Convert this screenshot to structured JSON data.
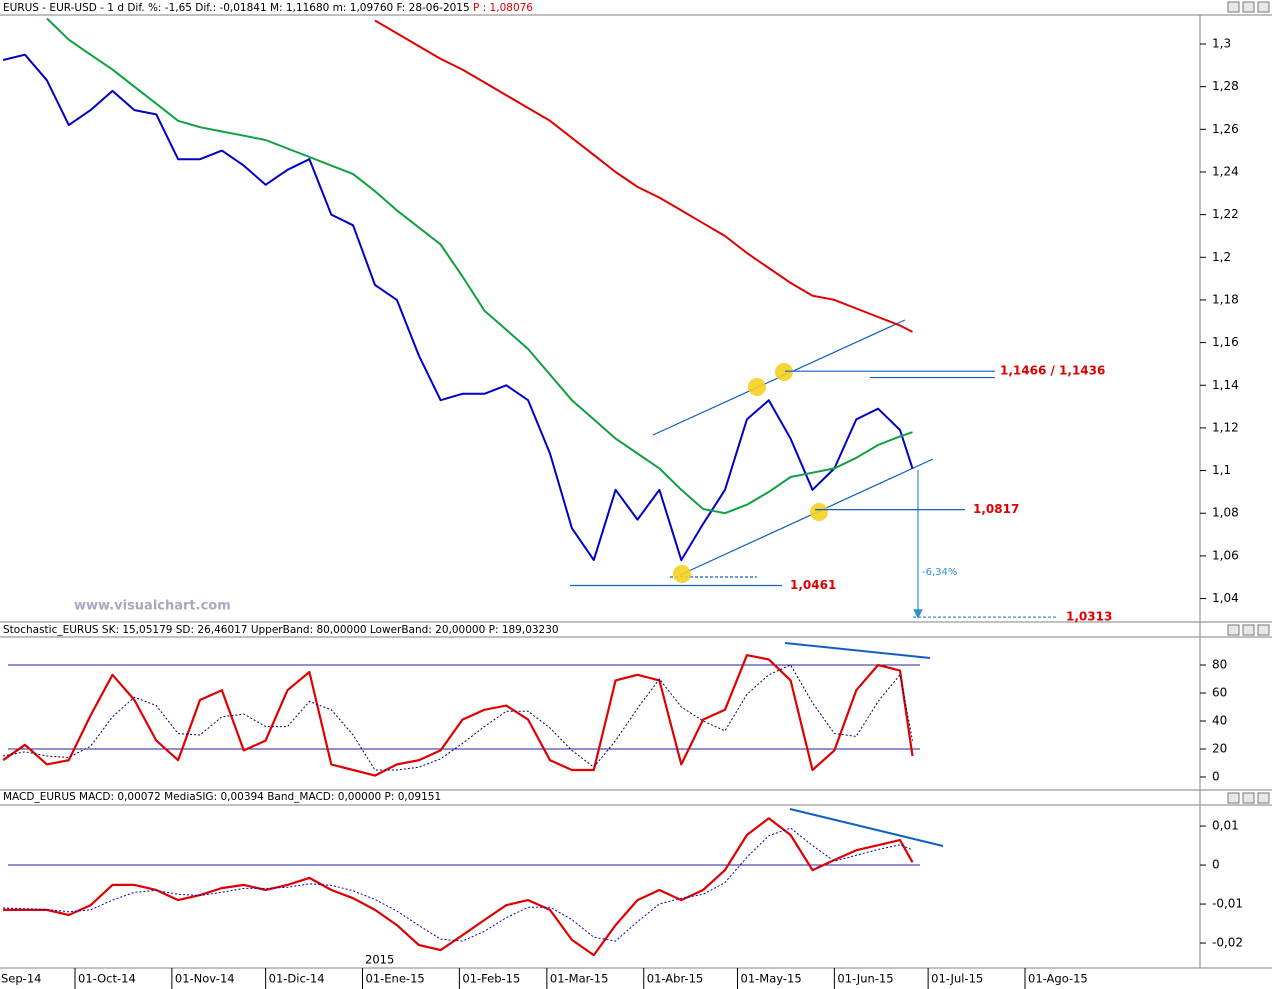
{
  "chart_data": [
    {
      "type": "line",
      "header": "EURUS - EUR-USD -  1 d Dif. %: -1,65 Dif.: -0,01841 M: 1,11680 m: 1,09760 F: 28-06-2015",
      "header_last": "P : 1,08076",
      "watermark": "www.visualchart.com",
      "change_label": "-6,34%",
      "x": [
        "2014-09-08",
        "2014-09-15",
        "2014-09-22",
        "2014-09-29",
        "2014-10-06",
        "2014-10-13",
        "2014-10-20",
        "2014-10-27",
        "2014-11-03",
        "2014-11-10",
        "2014-11-17",
        "2014-11-24",
        "2014-12-01",
        "2014-12-08",
        "2014-12-15",
        "2014-12-22",
        "2014-12-29",
        "2015-01-05",
        "2015-01-12",
        "2015-01-19",
        "2015-01-26",
        "2015-02-02",
        "2015-02-09",
        "2015-02-16",
        "2015-02-23",
        "2015-03-02",
        "2015-03-09",
        "2015-03-16",
        "2015-03-23",
        "2015-03-30",
        "2015-04-06",
        "2015-04-13",
        "2015-04-20",
        "2015-04-27",
        "2015-05-04",
        "2015-05-11",
        "2015-05-18",
        "2015-05-25",
        "2015-06-01",
        "2015-06-08",
        "2015-06-15",
        "2015-06-22",
        "2015-06-26"
      ],
      "series": [
        {
          "color": "#0000c8",
          "width": 2,
          "values": [
            1.2925,
            1.295,
            1.283,
            1.262,
            1.269,
            1.278,
            1.269,
            1.267,
            1.246,
            1.246,
            1.25,
            1.243,
            1.234,
            1.241,
            1.246,
            1.22,
            1.215,
            1.187,
            1.18,
            1.154,
            1.133,
            1.136,
            1.136,
            1.14,
            1.133,
            1.108,
            1.073,
            1.058,
            1.091,
            1.077,
            1.091,
            1.058,
            1.075,
            1.091,
            1.124,
            1.133,
            1.115,
            1.091,
            1.101,
            1.124,
            1.129,
            1.119,
            1.101
          ]
        },
        {
          "color": "#10a040",
          "width": 2,
          "values": [
            null,
            null,
            1.312,
            1.302,
            1.295,
            1.288,
            1.28,
            1.272,
            1.264,
            1.261,
            1.259,
            1.257,
            1.255,
            1.251,
            1.247,
            1.243,
            1.239,
            1.231,
            1.222,
            1.214,
            1.206,
            1.191,
            1.175,
            1.166,
            1.157,
            1.145,
            1.133,
            1.124,
            1.115,
            1.108,
            1.101,
            1.091,
            1.082,
            1.08,
            1.084,
            1.09,
            1.097,
            1.099,
            1.101,
            1.106,
            1.112,
            1.116,
            1.118
          ]
        },
        {
          "color": "#e00000",
          "width": 2,
          "values": [
            null,
            null,
            null,
            null,
            null,
            null,
            null,
            null,
            null,
            null,
            null,
            null,
            null,
            null,
            null,
            null,
            null,
            1.311,
            1.305,
            1.299,
            1.293,
            1.288,
            1.282,
            1.276,
            1.27,
            1.264,
            1.256,
            1.248,
            1.24,
            1.233,
            1.228,
            1.222,
            1.216,
            1.21,
            1.202,
            1.195,
            1.188,
            1.182,
            1.18,
            1.176,
            1.172,
            1.168,
            1.165
          ]
        }
      ],
      "levels": [
        {
          "label": "1,1466 / 1,1436",
          "values": [
            1.1466,
            1.1436
          ]
        },
        {
          "label": "1,0817",
          "values": [
            1.0817
          ]
        },
        {
          "label": "1,0461",
          "values": [
            1.0461
          ]
        },
        {
          "label": "1,0313",
          "values": [
            1.0313
          ]
        }
      ],
      "xlim": [
        "2014-09-07",
        "2015-09-26"
      ],
      "ylim": [
        1.029,
        1.3136
      ],
      "yticks": [
        {
          "value": 1.04,
          "label": "1,04"
        },
        {
          "value": 1.06,
          "label": "1,06"
        },
        {
          "value": 1.08,
          "label": "1,08"
        },
        {
          "value": 1.1,
          "label": "1,1"
        },
        {
          "value": 1.12,
          "label": "1,12"
        },
        {
          "value": 1.14,
          "label": "1,14"
        },
        {
          "value": 1.16,
          "label": "1,16"
        },
        {
          "value": 1.18,
          "label": "1,18"
        },
        {
          "value": 1.2,
          "label": "1,2"
        },
        {
          "value": 1.22,
          "label": "1,22"
        },
        {
          "value": 1.24,
          "label": "1,24"
        },
        {
          "value": 1.26,
          "label": "1,26"
        },
        {
          "value": 1.28,
          "label": "1,28"
        },
        {
          "value": 1.3,
          "label": "1,3"
        }
      ]
    },
    {
      "type": "line",
      "header": "Stochastic_EURUS SK: 15,05179 SD: 26,46017 UpperBand: 80,00000 LowerBand: 20,00000 P: 189,03230",
      "x": [
        "2014-09-08",
        "2014-09-15",
        "2014-09-22",
        "2014-09-29",
        "2014-10-06",
        "2014-10-13",
        "2014-10-20",
        "2014-10-27",
        "2014-11-03",
        "2014-11-10",
        "2014-11-17",
        "2014-11-24",
        "2014-12-01",
        "2014-12-08",
        "2014-12-15",
        "2014-12-22",
        "2014-12-29",
        "2015-01-05",
        "2015-01-12",
        "2015-01-19",
        "2015-01-26",
        "2015-02-02",
        "2015-02-09",
        "2015-02-16",
        "2015-02-23",
        "2015-03-02",
        "2015-03-09",
        "2015-03-16",
        "2015-03-23",
        "2015-03-30",
        "2015-04-06",
        "2015-04-13",
        "2015-04-20",
        "2015-04-27",
        "2015-05-04",
        "2015-05-11",
        "2015-05-18",
        "2015-05-25",
        "2015-06-01",
        "2015-06-08",
        "2015-06-15",
        "2015-06-22",
        "2015-06-26"
      ],
      "series": [
        {
          "color": "#e00000",
          "width": 2.2,
          "values": [
            12,
            23,
            9,
            12,
            44,
            73,
            55,
            26,
            12,
            55,
            62,
            19,
            26,
            62,
            75,
            9,
            5,
            1,
            9,
            12,
            19,
            41,
            48,
            51,
            41,
            12,
            5,
            5,
            69,
            73,
            69,
            9,
            41,
            48,
            87,
            84,
            69,
            5,
            19,
            62,
            80,
            76,
            15
          ]
        },
        {
          "color": "#000060",
          "width": 1,
          "dash": true,
          "values": [
            15,
            18,
            15,
            14,
            22,
            43,
            57,
            51,
            31,
            30,
            43,
            45,
            36,
            36,
            54,
            48,
            30,
            5,
            5,
            7,
            13,
            24,
            36,
            47,
            47,
            35,
            19,
            7,
            26,
            49,
            70,
            50,
            40,
            33,
            59,
            73,
            80,
            53,
            31,
            29,
            54,
            73,
            26
          ]
        }
      ],
      "bands": [
        80,
        20
      ],
      "xlim": [
        "2014-09-07",
        "2015-09-26"
      ],
      "ylim": [
        -9.3,
        100
      ],
      "yticks": [
        0,
        20,
        40,
        60,
        80
      ]
    },
    {
      "type": "line",
      "header": "MACD_EURUS MACD: 0,00072 MediaSIG: 0,00394 Band_MACD: 0,00000 P: 0,09151",
      "year_label": "2015",
      "x": [
        "2014-09-08",
        "2014-09-15",
        "2014-09-22",
        "2014-09-29",
        "2014-10-06",
        "2014-10-13",
        "2014-10-20",
        "2014-10-27",
        "2014-11-03",
        "2014-11-10",
        "2014-11-17",
        "2014-11-24",
        "2014-12-01",
        "2014-12-08",
        "2014-12-15",
        "2014-12-22",
        "2014-12-29",
        "2015-01-05",
        "2015-01-12",
        "2015-01-19",
        "2015-01-26",
        "2015-02-02",
        "2015-02-09",
        "2015-02-16",
        "2015-02-23",
        "2015-03-02",
        "2015-03-09",
        "2015-03-16",
        "2015-03-23",
        "2015-03-30",
        "2015-04-06",
        "2015-04-13",
        "2015-04-20",
        "2015-04-27",
        "2015-05-04",
        "2015-05-11",
        "2015-05-18",
        "2015-05-25",
        "2015-06-01",
        "2015-06-08",
        "2015-06-15",
        "2015-06-22",
        "2015-06-26"
      ],
      "series": [
        {
          "color": "#e00000",
          "width": 2.2,
          "values": [
            -0.0115,
            -0.0115,
            -0.0115,
            -0.0128,
            -0.0103,
            -0.0051,
            -0.0051,
            -0.0064,
            -0.009,
            -0.0077,
            -0.0059,
            -0.0051,
            -0.0064,
            -0.0051,
            -0.0033,
            -0.0064,
            -0.0085,
            -0.0115,
            -0.0154,
            -0.0205,
            -0.0218,
            -0.018,
            -0.0141,
            -0.0103,
            -0.009,
            -0.0115,
            -0.0192,
            -0.0231,
            -0.0154,
            -0.009,
            -0.0064,
            -0.009,
            -0.0064,
            -0.0013,
            0.0077,
            0.012,
            0.0077,
            -0.0013,
            0.0013,
            0.0038,
            0.0051,
            0.0064,
            0.0007
          ]
        },
        {
          "color": "#0000c8",
          "width": 1,
          "dash": true,
          "values": [
            -0.011,
            -0.0112,
            -0.0114,
            -0.012,
            -0.0115,
            -0.009,
            -0.007,
            -0.0065,
            -0.0075,
            -0.0078,
            -0.007,
            -0.006,
            -0.006,
            -0.0057,
            -0.0048,
            -0.0052,
            -0.0066,
            -0.0088,
            -0.0118,
            -0.0155,
            -0.019,
            -0.0195,
            -0.017,
            -0.0135,
            -0.0108,
            -0.0108,
            -0.014,
            -0.0185,
            -0.0195,
            -0.0145,
            -0.01,
            -0.0085,
            -0.0075,
            -0.0045,
            0.002,
            0.0075,
            0.0095,
            0.005,
            0.001,
            0.0025,
            0.004,
            0.0052,
            0.0039
          ]
        }
      ],
      "bands": [
        0
      ],
      "xlim": [
        "2014-09-07",
        "2015-09-26"
      ],
      "ylim": [
        -0.0264,
        0.0154
      ],
      "yticks": [
        {
          "value": 0.01,
          "label": "0,01"
        },
        0,
        {
          "value": -0.01,
          "label": "-0,01"
        },
        {
          "value": -0.02,
          "label": "-0,02"
        }
      ],
      "xticks": [
        {
          "value": "2014-09-01",
          "label": "Sep-14"
        },
        {
          "value": "2014-10-01",
          "label": "01-Oct-14"
        },
        {
          "value": "2014-11-01",
          "label": "01-Nov-14"
        },
        {
          "value": "2014-12-01",
          "label": "01-Dic-14"
        },
        {
          "value": "2015-01-01",
          "label": "01-Ene-15"
        },
        {
          "value": "2015-02-01",
          "label": "01-Feb-15"
        },
        {
          "value": "2015-03-01",
          "label": "01-Mar-15"
        },
        {
          "value": "2015-04-01",
          "label": "01-Abr-15"
        },
        {
          "value": "2015-05-01",
          "label": "01-May-15"
        },
        {
          "value": "2015-06-01",
          "label": "01-Jun-15"
        },
        {
          "value": "2015-07-01",
          "label": "01-Jul-15"
        },
        {
          "value": "2015-08-01",
          "label": "01-Ago-15"
        }
      ]
    }
  ]
}
